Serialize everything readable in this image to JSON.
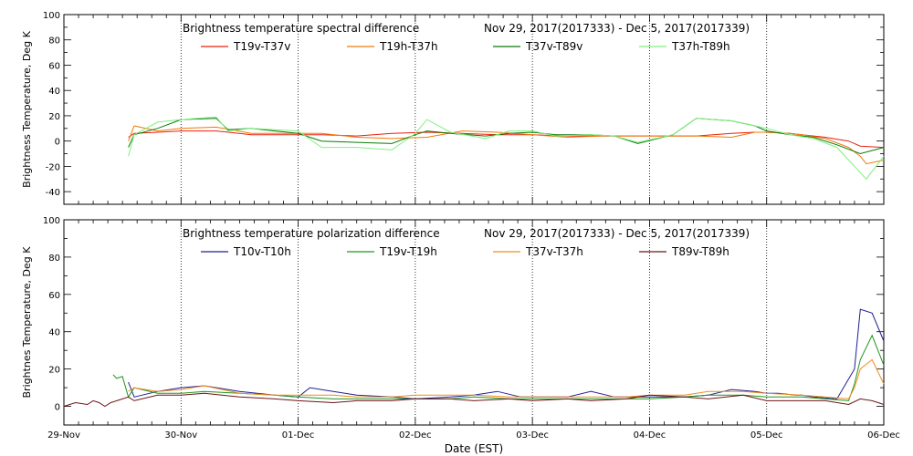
{
  "xlabel": "Date (EST)",
  "x_ticks": [
    "29-Nov",
    "30-Nov",
    "01-Dec",
    "02-Dec",
    "03-Dec",
    "04-Dec",
    "05-Dec",
    "06-Dec"
  ],
  "chart_data": [
    {
      "type": "line",
      "title": "Brightness temperature spectral difference",
      "date_range": "Nov 29, 2017(2017333) - Dec  5, 2017(2017339)",
      "ylabel": "Brightness Temperature, Deg K",
      "ylim": [
        -50,
        100
      ],
      "y_ticks": [
        -40,
        -20,
        0,
        20,
        40,
        60,
        80,
        100
      ],
      "xlim": [
        0,
        7
      ],
      "x_unit": "days since 29-Nov",
      "grid": "vertical dotted at day ticks",
      "legend": "top",
      "series": [
        {
          "name": "T19v-T37v",
          "color": "#e8200e",
          "x": [
            0.55,
            0.6,
            0.8,
            1.0,
            1.3,
            1.6,
            1.9,
            2.2,
            2.5,
            2.8,
            3.1,
            3.4,
            3.7,
            4.0,
            4.3,
            4.6,
            4.9,
            5.1,
            5.4,
            5.7,
            5.9,
            6.0,
            6.2,
            6.3,
            6.5,
            6.7,
            6.8,
            7.0
          ],
          "y": [
            3,
            6,
            7,
            8,
            8,
            5,
            5,
            5,
            4,
            6,
            7,
            6,
            5,
            5,
            4,
            4,
            4,
            4,
            4,
            6,
            7,
            7,
            6,
            5,
            3,
            0,
            -4,
            -5
          ]
        },
        {
          "name": "T19h-T37h",
          "color": "#f07a0a",
          "x": [
            0.55,
            0.6,
            0.8,
            1.0,
            1.3,
            1.6,
            1.9,
            2.2,
            2.5,
            2.8,
            3.1,
            3.4,
            3.7,
            4.0,
            4.3,
            4.6,
            4.9,
            5.1,
            5.4,
            5.7,
            5.9,
            6.0,
            6.2,
            6.3,
            6.5,
            6.7,
            6.8,
            6.85,
            7.0
          ],
          "y": [
            0,
            12,
            8,
            10,
            11,
            6,
            6,
            6,
            3,
            2,
            3,
            8,
            7,
            5,
            3,
            4,
            4,
            4,
            4,
            3,
            7,
            7,
            6,
            5,
            2,
            -5,
            -12,
            -18,
            -15
          ]
        },
        {
          "name": "T37v-T89v",
          "color": "#0a7a0a",
          "x": [
            0.55,
            0.6,
            0.8,
            1.0,
            1.3,
            1.4,
            1.6,
            1.8,
            2.0,
            2.2,
            2.5,
            2.8,
            3.0,
            3.1,
            3.3,
            3.6,
            3.8,
            4.0,
            4.2,
            4.5,
            4.7,
            4.9,
            5.2,
            5.4,
            5.7,
            5.9,
            6.0,
            6.2,
            6.4,
            6.6,
            6.8,
            7.0
          ],
          "y": [
            -5,
            5,
            10,
            17,
            18,
            9,
            10,
            8,
            6,
            0,
            -1,
            -2,
            5,
            8,
            6,
            4,
            6,
            7,
            5,
            5,
            4,
            -2,
            5,
            18,
            16,
            12,
            8,
            5,
            3,
            -3,
            -10,
            -5
          ]
        },
        {
          "name": "T37h-T89h",
          "color": "#7df07d",
          "x": [
            0.55,
            0.6,
            0.8,
            1.0,
            1.3,
            1.4,
            1.6,
            1.8,
            2.0,
            2.2,
            2.5,
            2.8,
            3.0,
            3.1,
            3.3,
            3.6,
            3.8,
            4.0,
            4.2,
            4.5,
            4.7,
            4.9,
            5.2,
            5.4,
            5.7,
            5.9,
            6.0,
            6.2,
            6.4,
            6.6,
            6.8,
            6.85,
            7.0
          ],
          "y": [
            -12,
            5,
            15,
            17,
            19,
            8,
            10,
            9,
            8,
            -5,
            -5,
            -7,
            6,
            17,
            7,
            2,
            8,
            8,
            4,
            5,
            4,
            -1,
            5,
            18,
            16,
            12,
            10,
            5,
            2,
            -5,
            -25,
            -30,
            -12
          ]
        }
      ]
    },
    {
      "type": "line",
      "title": "Brightness temperature polarization difference",
      "date_range": "Nov 29, 2017(2017333) - Dec  5, 2017(2017339)",
      "ylabel": "Brightnes Temperature, Deg K",
      "ylim": [
        -10,
        100
      ],
      "y_ticks": [
        0,
        20,
        40,
        60,
        80,
        100
      ],
      "xlim": [
        0,
        7
      ],
      "x_unit": "days since 29-Nov",
      "grid": "vertical dotted at day ticks",
      "legend": "top",
      "series": [
        {
          "name": "T10v-T10h",
          "color": "#1e1e96",
          "x": [
            0.55,
            0.6,
            0.8,
            1.0,
            1.2,
            1.5,
            1.8,
            2.0,
            2.1,
            2.3,
            2.5,
            2.8,
            3.0,
            3.3,
            3.5,
            3.7,
            3.9,
            4.1,
            4.3,
            4.5,
            4.7,
            4.9,
            5.1,
            5.3,
            5.5,
            5.7,
            5.9,
            6.0,
            6.1,
            6.25,
            6.3,
            6.4,
            6.6,
            6.75,
            6.8,
            6.9,
            7.0
          ],
          "y": [
            13,
            5,
            8,
            10,
            11,
            8,
            6,
            5,
            10,
            8,
            6,
            5,
            4,
            5,
            6,
            8,
            5,
            5,
            5,
            8,
            5,
            5,
            5,
            5,
            6,
            9,
            8,
            7,
            7,
            6,
            6,
            5,
            4,
            20,
            52,
            50,
            35
          ]
        },
        {
          "name": "T19v-T19h",
          "color": "#1e961e",
          "x": [
            0.42,
            0.45,
            0.5,
            0.55,
            0.6,
            0.8,
            1.0,
            1.2,
            1.5,
            1.8,
            2.0,
            2.3,
            2.5,
            2.8,
            3.0,
            3.3,
            3.5,
            3.8,
            4.0,
            4.3,
            4.5,
            4.8,
            5.0,
            5.3,
            5.5,
            5.8,
            6.0,
            6.3,
            6.5,
            6.7,
            6.75,
            6.8,
            6.9,
            7.0
          ],
          "y": [
            17,
            15,
            16,
            5,
            10,
            7,
            7,
            8,
            7,
            6,
            5,
            4,
            4,
            4,
            4,
            4,
            5,
            4,
            4,
            4,
            4,
            4,
            4,
            5,
            6,
            6,
            5,
            5,
            4,
            3,
            12,
            25,
            38,
            22
          ]
        },
        {
          "name": "T37v-T37h",
          "color": "#f08c1e",
          "x": [
            0.55,
            0.6,
            0.8,
            1.0,
            1.2,
            1.5,
            1.8,
            2.0,
            2.3,
            2.5,
            2.8,
            3.0,
            3.3,
            3.5,
            3.8,
            4.0,
            4.3,
            4.5,
            4.8,
            5.0,
            5.3,
            5.5,
            5.8,
            6.0,
            6.3,
            6.5,
            6.7,
            6.75,
            6.8,
            6.9,
            7.0
          ],
          "y": [
            8,
            10,
            8,
            9,
            11,
            7,
            6,
            6,
            6,
            5,
            5,
            6,
            6,
            6,
            5,
            5,
            5,
            5,
            5,
            6,
            6,
            8,
            8,
            7,
            6,
            5,
            4,
            10,
            20,
            25,
            12
          ]
        },
        {
          "name": "T89v-T89h",
          "color": "#6e1414",
          "x": [
            0.0,
            0.1,
            0.2,
            0.25,
            0.3,
            0.35,
            0.4,
            0.55,
            0.6,
            0.8,
            1.0,
            1.2,
            1.5,
            1.8,
            2.0,
            2.3,
            2.5,
            2.8,
            3.0,
            3.3,
            3.5,
            3.8,
            4.0,
            4.3,
            4.5,
            4.8,
            5.0,
            5.3,
            5.5,
            5.8,
            6.0,
            6.3,
            6.5,
            6.7,
            6.8,
            6.9,
            7.0
          ],
          "y": [
            0,
            2,
            1,
            3,
            2,
            0,
            2,
            5,
            3,
            6,
            6,
            7,
            5,
            4,
            3,
            2,
            3,
            3,
            4,
            4,
            3,
            4,
            3,
            4,
            3,
            4,
            6,
            5,
            4,
            6,
            3,
            3,
            3,
            1,
            4,
            3,
            1
          ]
        }
      ]
    }
  ]
}
